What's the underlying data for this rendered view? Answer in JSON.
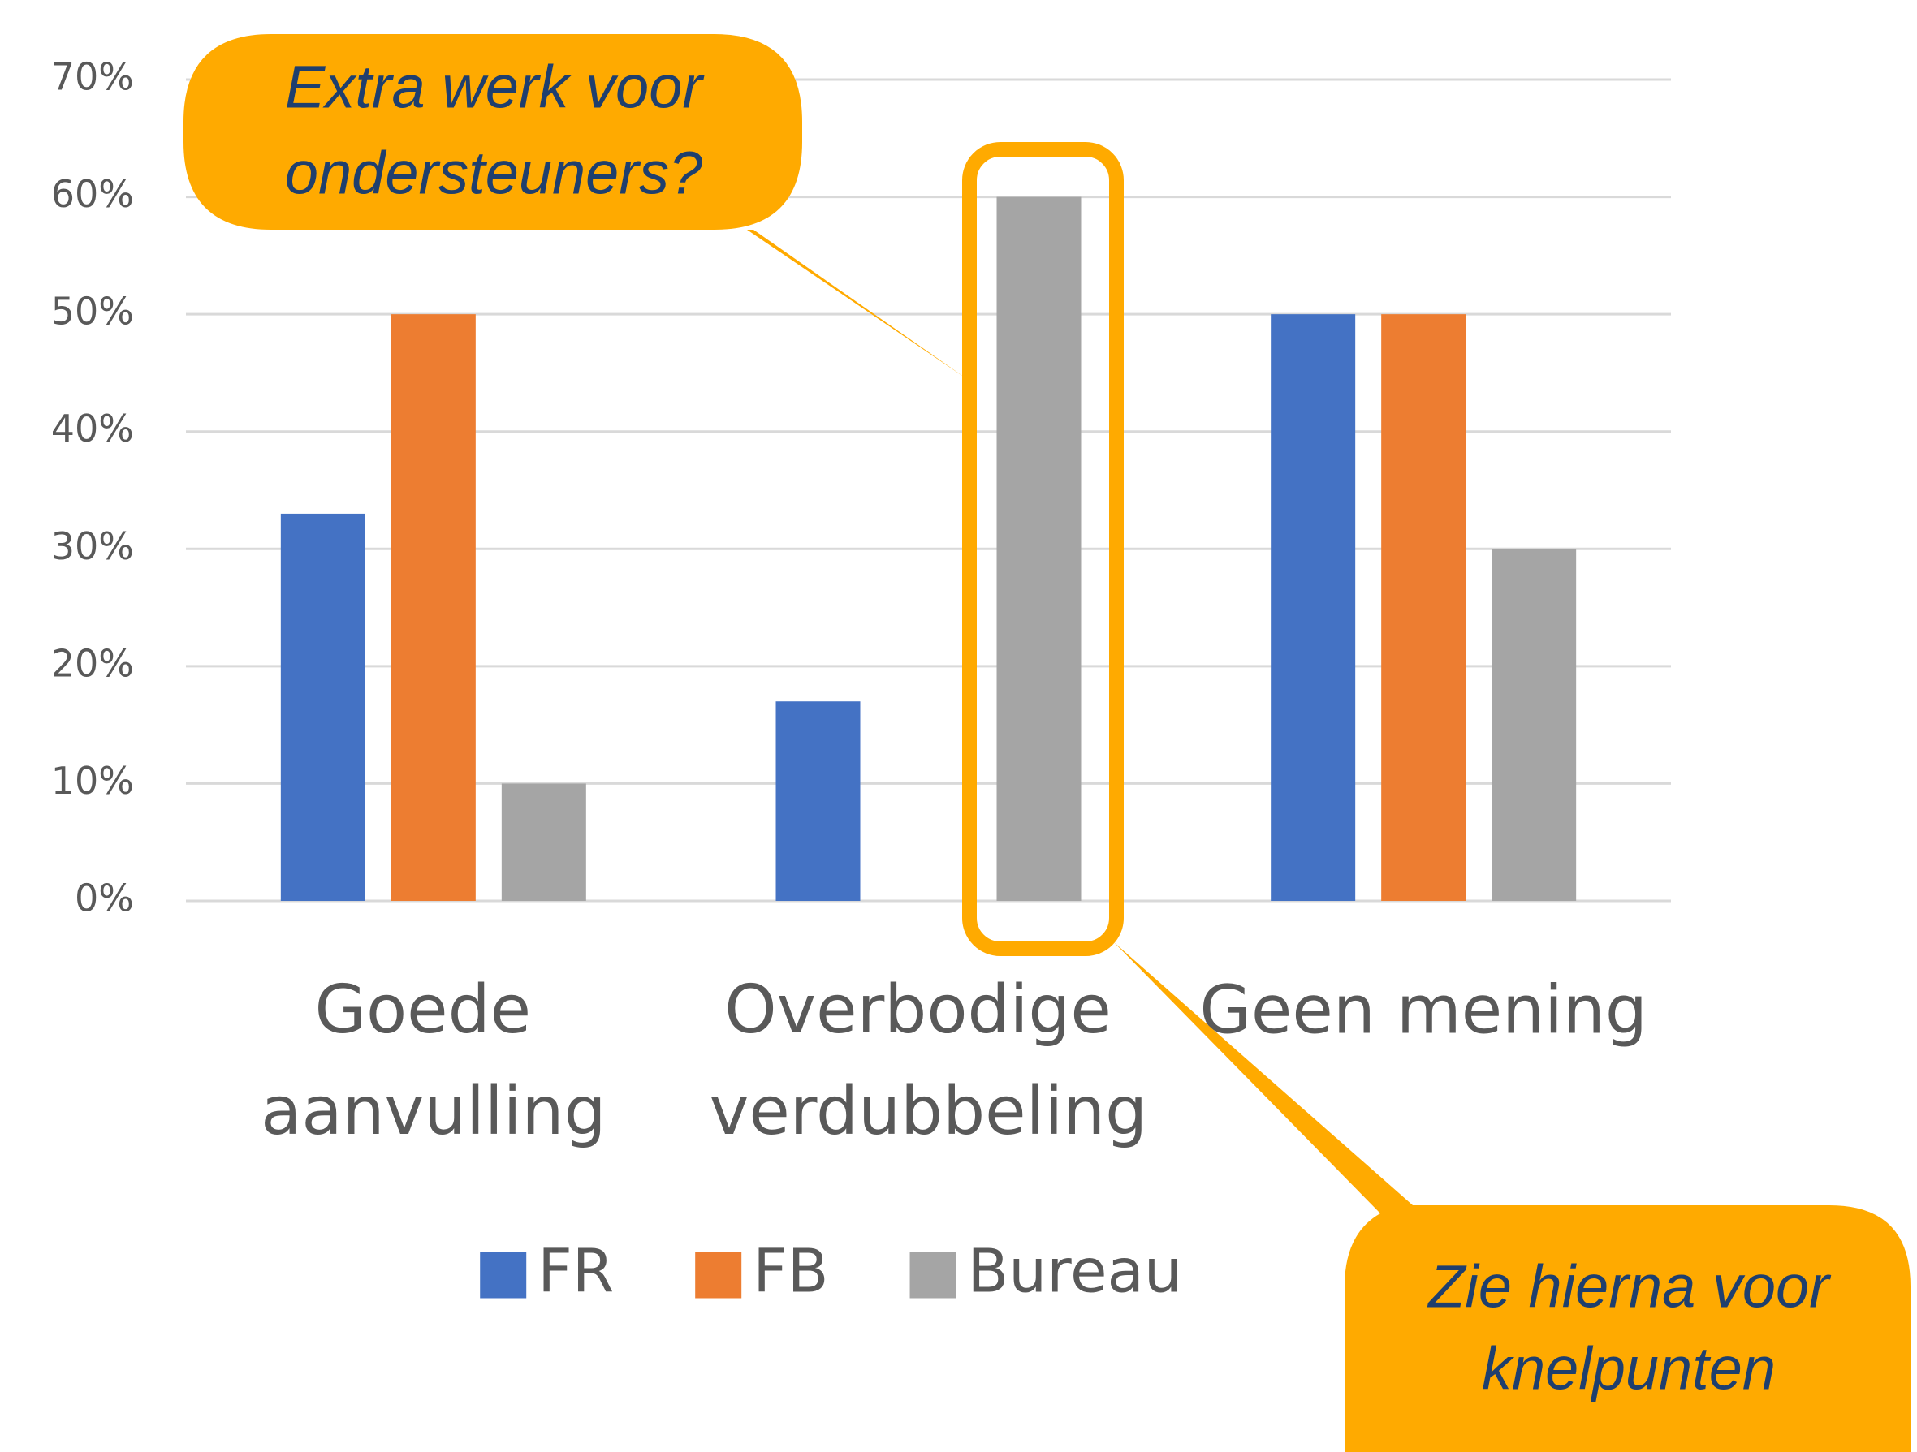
{
  "chart_data": {
    "type": "bar",
    "categories": [
      "Goede aanvulling",
      "Overbodige verdubbeling",
      "Geen mening"
    ],
    "series": [
      {
        "name": "FR",
        "color": "#4472c4",
        "values": [
          33,
          17,
          50
        ]
      },
      {
        "name": "FB",
        "color": "#ed7d31",
        "values": [
          50,
          0,
          50
        ]
      },
      {
        "name": "Bureau",
        "color": "#a5a5a5",
        "values": [
          10,
          60,
          30
        ]
      }
    ],
    "ylim": [
      0,
      70
    ],
    "yticks": [
      {
        "value": 0,
        "label": "0%"
      },
      {
        "value": 10,
        "label": "10%"
      },
      {
        "value": 20,
        "label": "20%"
      },
      {
        "value": 30,
        "label": "30%"
      },
      {
        "value": 40,
        "label": "40%"
      },
      {
        "value": 50,
        "label": "50%"
      },
      {
        "value": 60,
        "label": "60%"
      },
      {
        "value": 70,
        "label": "70%"
      }
    ],
    "grid": true,
    "annotations": [
      {
        "lines": [
          "Extra werk voor",
          "ondersteuners?"
        ]
      },
      {
        "lines": [
          "Zie hierna voor",
          "knelpunten"
        ]
      }
    ]
  }
}
